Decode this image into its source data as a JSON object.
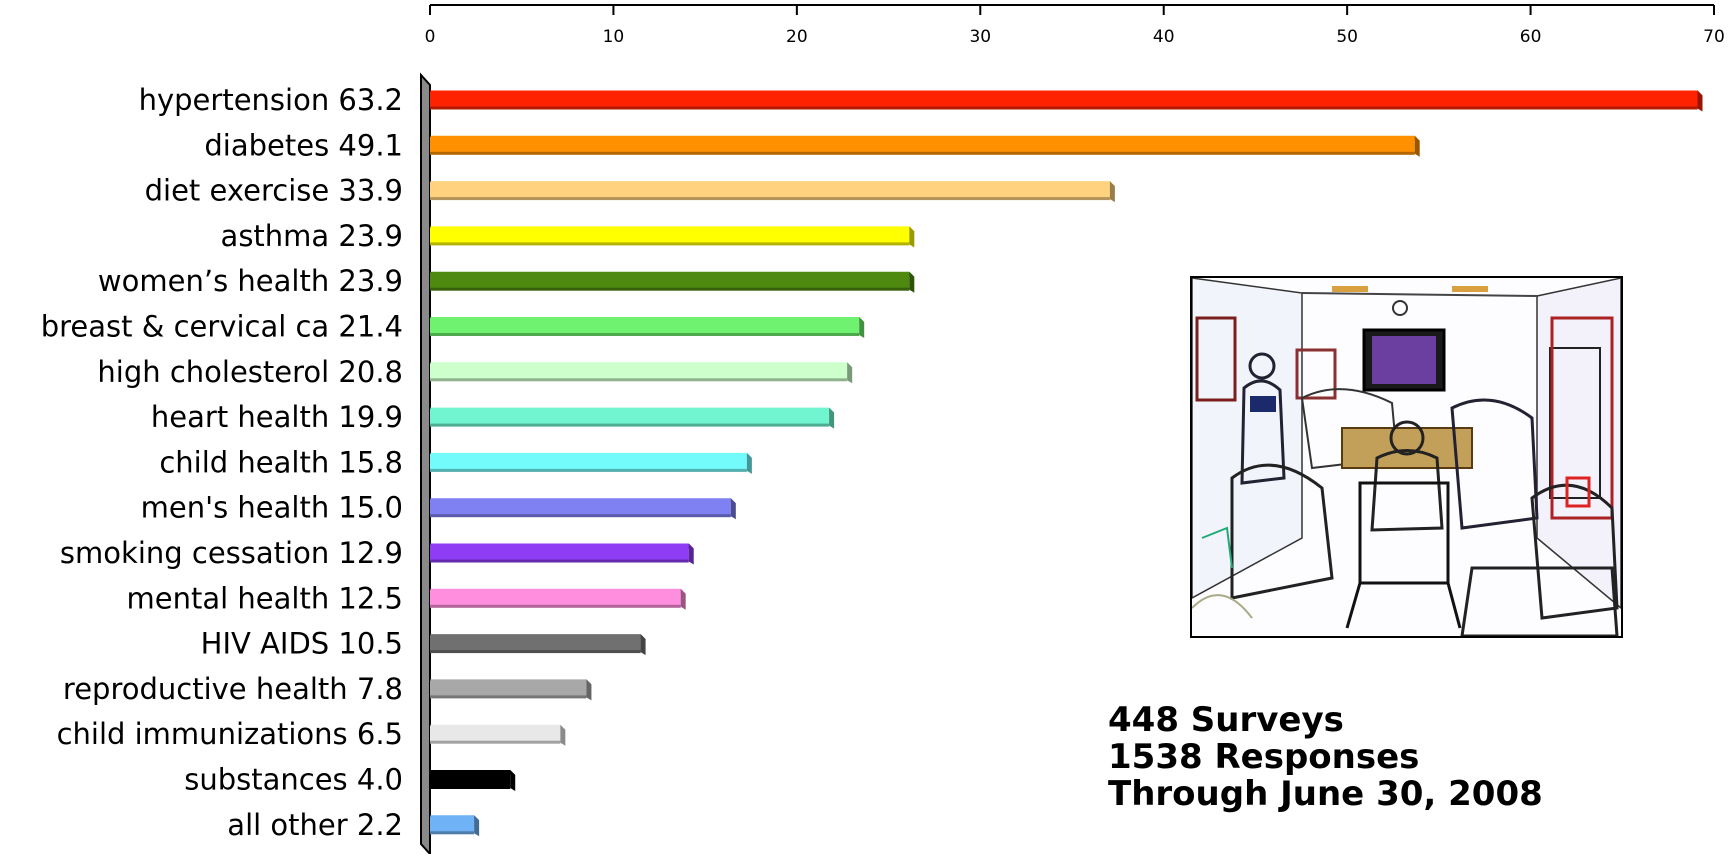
{
  "chart_data": {
    "type": "bar",
    "orientation": "horizontal",
    "categories": [
      "hypertension 63.2",
      "diabetes 49.1",
      "diet exercise 33.9",
      "asthma  23.9",
      "women’s health 23.9",
      "breast & cervical ca 21.4",
      "high cholesterol 20.8",
      "heart health 19.9",
      "child health 15.8",
      "men's health 15.0",
      "smoking cessation 12.9",
      "mental health 12.5",
      "HIV AIDS 10.5",
      "reproductive health 7.8",
      "child immunizations 6.5",
      "substances 4.0",
      "all other 2.2"
    ],
    "values": [
      63.2,
      49.1,
      33.9,
      23.9,
      23.9,
      21.4,
      20.8,
      19.9,
      15.8,
      15.0,
      12.9,
      12.5,
      10.5,
      7.8,
      6.5,
      4.0,
      2.2
    ],
    "colors": [
      "#ff2200",
      "#ff9100",
      "#ffd27f",
      "#ffff00",
      "#4e8a10",
      "#6ff26f",
      "#ccffcc",
      "#70f5d0",
      "#73fbfb",
      "#7f80f2",
      "#8f3cf5",
      "#ff8fde",
      "#707070",
      "#a8a8a8",
      "#e8e8e8",
      "#000000",
      "#6fb3f6"
    ],
    "xlim": [
      0,
      70
    ],
    "xticks": [
      "0",
      "10",
      "20",
      "30",
      "40",
      "50",
      "60",
      "70"
    ],
    "title": "",
    "xlabel": "",
    "ylabel": "",
    "grid": false,
    "axis_position": "top"
  },
  "stats": {
    "surveys": "448 Surveys",
    "responses": "1538 Responses",
    "through": "Through June 30, 2008"
  }
}
